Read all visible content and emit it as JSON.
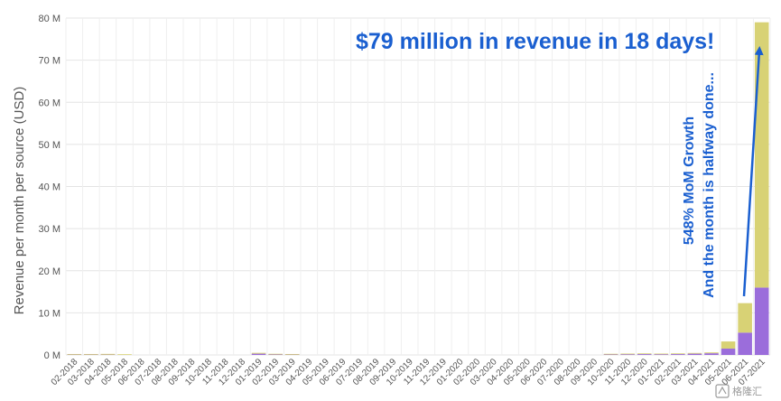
{
  "chart_data": {
    "type": "bar",
    "stacked": true,
    "ylabel": "Revenue per month per source (USD)",
    "ylim": [
      0,
      80
    ],
    "yticks": [
      "0 M",
      "10 M",
      "20 M",
      "30 M",
      "40 M",
      "50 M",
      "60 M",
      "70 M",
      "80 M"
    ],
    "grid": true,
    "categories": [
      "02-2018",
      "03-2018",
      "04-2018",
      "05-2018",
      "06-2018",
      "07-2018",
      "08-2018",
      "09-2018",
      "10-2018",
      "11-2018",
      "12-2018",
      "01-2019",
      "02-2019",
      "03-2019",
      "04-2019",
      "05-2019",
      "06-2019",
      "07-2019",
      "08-2019",
      "09-2019",
      "10-2019",
      "11-2019",
      "12-2019",
      "01-2020",
      "02-2020",
      "03-2020",
      "04-2020",
      "05-2020",
      "06-2020",
      "07-2020",
      "08-2020",
      "09-2020",
      "10-2020",
      "11-2020",
      "12-2020",
      "01-2021",
      "02-2021",
      "03-2021",
      "04-2021",
      "05-2021",
      "06-2021",
      "07-2021"
    ],
    "series": [
      {
        "color": "#9b6ddb",
        "values": [
          0.05,
          0.05,
          0.05,
          0,
          0,
          0,
          0,
          0,
          0,
          0,
          0,
          0.3,
          0.1,
          0.05,
          0,
          0,
          0,
          0,
          0,
          0,
          0,
          0,
          0,
          0,
          0,
          0,
          0,
          0,
          0,
          0,
          0,
          0,
          0.1,
          0.15,
          0.2,
          0.15,
          0.2,
          0.3,
          0.4,
          1.5,
          5.3,
          16
        ]
      },
      {
        "color": "#d8d275",
        "values": [
          0.1,
          0.1,
          0.2,
          0.05,
          0,
          0,
          0,
          0,
          0,
          0,
          0,
          0.2,
          0.1,
          0.05,
          0,
          0,
          0,
          0,
          0,
          0,
          0,
          0,
          0,
          0,
          0,
          0,
          0,
          0,
          0,
          0,
          0,
          0,
          0.05,
          0.05,
          0.05,
          0.05,
          0.05,
          0.1,
          0.2,
          1.7,
          7,
          63
        ]
      }
    ],
    "annotations": {
      "headline": "$79 million in revenue in 18 days!",
      "growth": "548% MoM Growth",
      "halfway": "And the month is halfway done..."
    }
  },
  "watermark": {
    "brand": "格隆汇",
    "icon": "gelonghui-logo-icon"
  }
}
